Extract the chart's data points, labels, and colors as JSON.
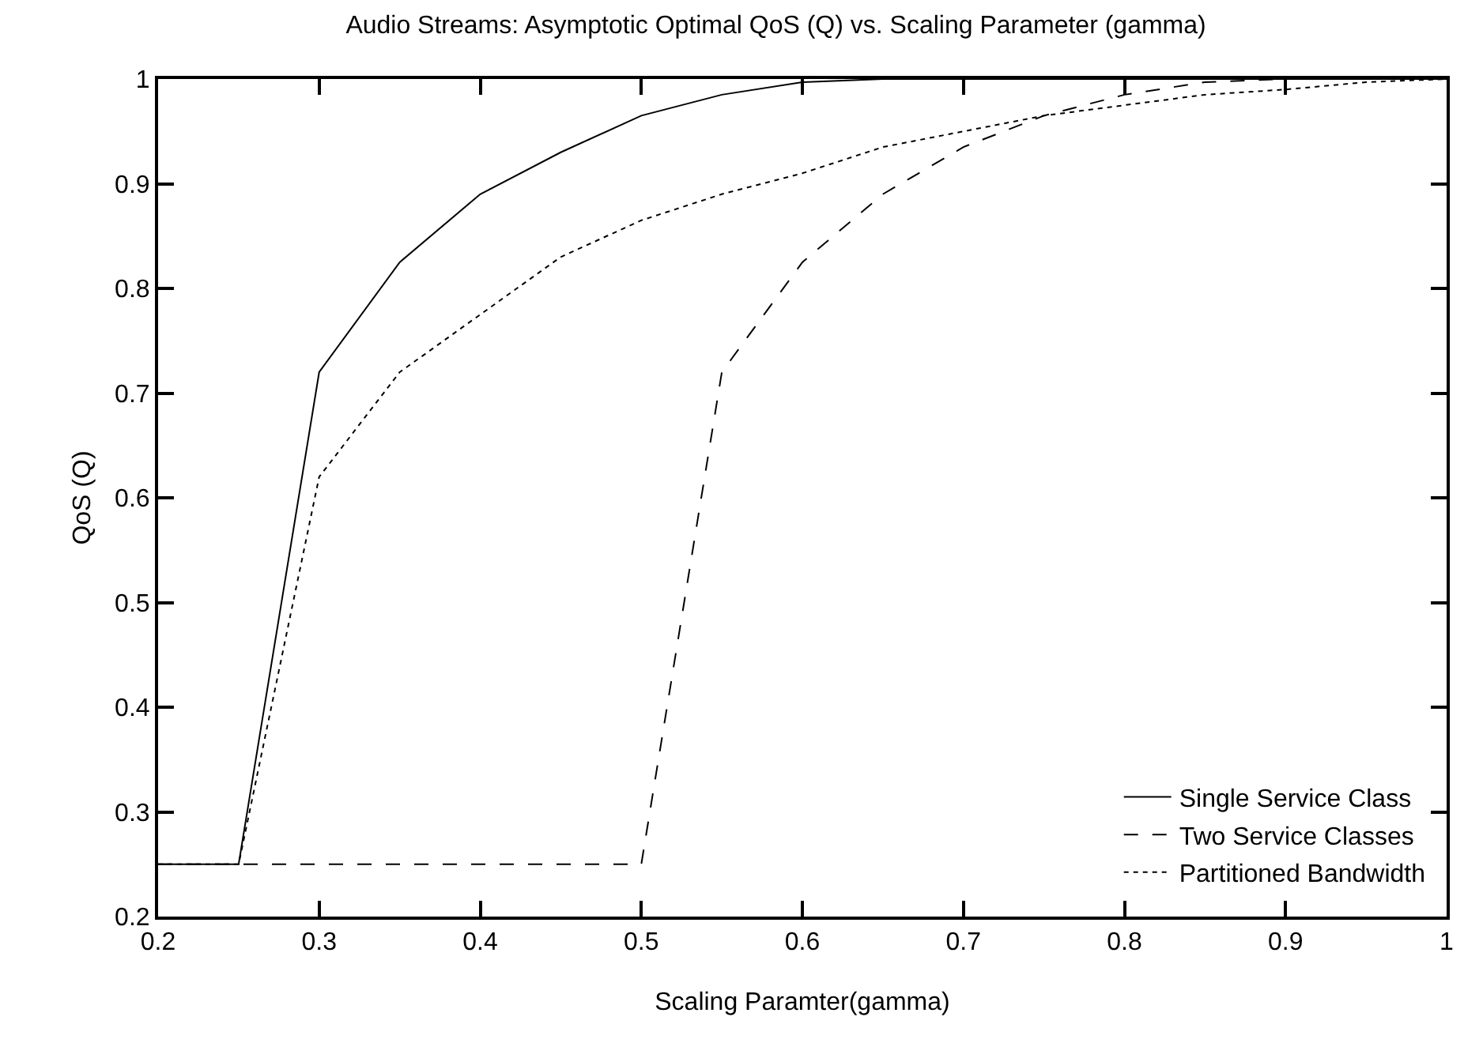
{
  "chart_data": {
    "type": "line",
    "title": "Audio Streams: Asymptotic Optimal QoS (Q) vs. Scaling Parameter (gamma)",
    "xlabel": "Scaling Paramter(gamma)",
    "ylabel": "QoS (Q)",
    "x": [
      0.2,
      0.25,
      0.3,
      0.35,
      0.4,
      0.45,
      0.5,
      0.55,
      0.6,
      0.65,
      0.7,
      0.75,
      0.8,
      0.85,
      0.9,
      0.95,
      1
    ],
    "series": [
      {
        "name": "Single Service Class",
        "color": "#000000",
        "line_style": "solid",
        "values": [
          0.25,
          0.25,
          0.72,
          0.825,
          0.89,
          0.93,
          0.965,
          0.985,
          0.997,
          1,
          1,
          1,
          1,
          1,
          1,
          1,
          1
        ]
      },
      {
        "name": "Two Service Classes",
        "color": "#000000",
        "line_style": "dashed",
        "values": [
          0.25,
          0.25,
          0.25,
          0.25,
          0.25,
          0.25,
          0.25,
          0.72,
          0.825,
          0.89,
          0.935,
          0.965,
          0.985,
          0.997,
          1,
          1,
          1
        ]
      },
      {
        "name": "Partitioned Bandwidth",
        "color": "#000000",
        "line_style": "dotted",
        "values": [
          0.25,
          0.25,
          0.62,
          0.72,
          0.775,
          0.83,
          0.865,
          0.89,
          0.91,
          0.935,
          0.95,
          0.965,
          0.975,
          0.985,
          0.99,
          0.997,
          1
        ]
      }
    ],
    "xlim": [
      0.2,
      1
    ],
    "xticks": [
      0.2,
      0.3,
      0.4,
      0.5,
      0.6,
      0.7,
      0.8,
      0.9,
      1
    ],
    "ylim": [
      0.2,
      1
    ],
    "yticks": [
      0.2,
      0.3,
      0.4,
      0.5,
      0.6,
      0.7,
      0.8,
      0.9,
      1
    ],
    "grid": false,
    "legend": "bottom right",
    "marker": "none"
  }
}
